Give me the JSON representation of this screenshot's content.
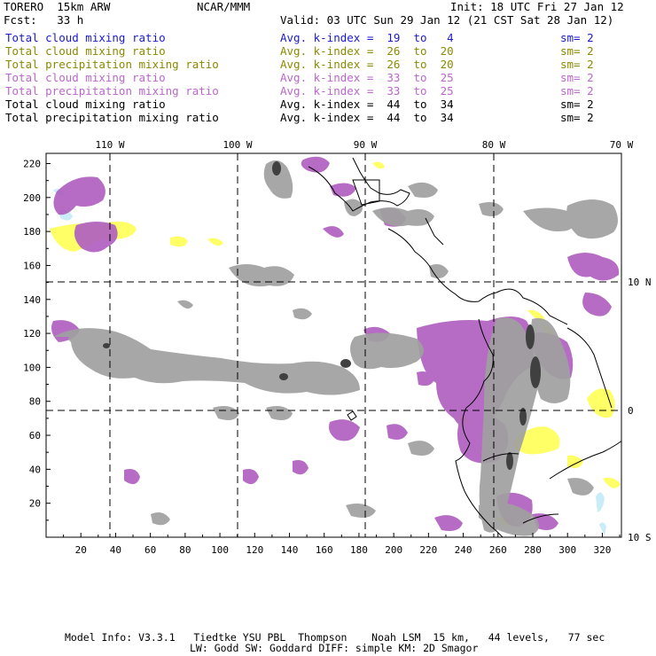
{
  "header": {
    "model": "TORERO  15km ARW",
    "source": "NCAR/MMM",
    "init": "Init: 18 UTC Fri 27 Jan 12",
    "fcst": "Fcst:   33 h",
    "valid": "Valid: 03 UTC Sun 29 Jan 12 (21 CST Sat 28 Jan 12)"
  },
  "legend_rows": [
    {
      "field": "Total cloud mixing ratio",
      "kindex": "Avg. k-index =  19  to   4",
      "sm": "sm= 2",
      "color": "#1a1acc"
    },
    {
      "field": "Total cloud mixing ratio",
      "kindex": "Avg. k-index =  26  to  20",
      "sm": "sm= 2",
      "color": "#8a8a00"
    },
    {
      "field": "Total precipitation mixing ratio",
      "kindex": "Avg. k-index =  26  to  20",
      "sm": "sm= 2",
      "color": "#8a8a00"
    },
    {
      "field": "Total cloud mixing ratio",
      "kindex": "Avg. k-index =  33  to  25",
      "sm": "sm= 2",
      "color": "#bb66cc"
    },
    {
      "field": "Total precipitation mixing ratio",
      "kindex": "Avg. k-index =  33  to  25",
      "sm": "sm= 2",
      "color": "#bb66cc"
    },
    {
      "field": "Total cloud mixing ratio",
      "kindex": "Avg. k-index =  44  to  34",
      "sm": "sm= 2",
      "color": "#000000"
    },
    {
      "field": "Total precipitation mixing ratio",
      "kindex": "Avg. k-index =  44  to  34",
      "sm": "sm= 2",
      "color": "#000000"
    }
  ],
  "map": {
    "lon_labels": [
      "110 W",
      "100 W",
      "90 W",
      "80 W",
      "70 W"
    ],
    "lat_labels": [
      "10 N",
      "0",
      "10 S"
    ],
    "x_ticks": [
      "20",
      "40",
      "60",
      "80",
      "100",
      "120",
      "140",
      "160",
      "180",
      "200",
      "220",
      "240",
      "260",
      "280",
      "300",
      "320"
    ],
    "y_ticks": [
      "220",
      "200",
      "180",
      "160",
      "140",
      "120",
      "100",
      "80",
      "60",
      "40",
      "20"
    ],
    "colors": {
      "cloud_low": "#c8ecf8",
      "yellow": "#ffff66",
      "purple": "#b060c0",
      "gray": "#a0a0a0",
      "dark": "#404040"
    }
  },
  "footer": {
    "line1": "Model Info: V3.3.1   Tiedtke YSU PBL  Thompson    Noah LSM  15 km,   44 levels,   77 sec",
    "line2": "LW: Godd SW: Goddard DIFF: simple KM: 2D Smagor"
  }
}
